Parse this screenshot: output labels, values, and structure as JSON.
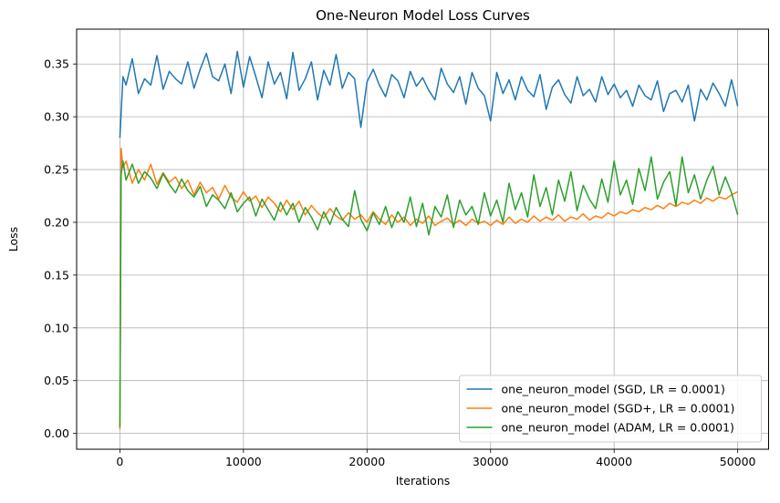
{
  "chart_data": {
    "type": "line",
    "title": "One-Neuron Model Loss Curves",
    "xlabel": "Iterations",
    "ylabel": "Loss",
    "xlim": [
      -3500,
      52500
    ],
    "ylim": [
      -0.015,
      0.383
    ],
    "x_ticks": [
      0,
      10000,
      20000,
      30000,
      40000,
      50000
    ],
    "y_ticks": [
      0.0,
      0.05,
      0.1,
      0.15,
      0.2,
      0.25,
      0.3,
      0.35
    ],
    "x_tick_labels": [
      "0",
      "10000",
      "20000",
      "30000",
      "40000",
      "50000"
    ],
    "y_tick_labels": [
      "0.00",
      "0.05",
      "0.10",
      "0.15",
      "0.20",
      "0.25",
      "0.30",
      "0.35"
    ],
    "grid": true,
    "legend_position": "lower-right",
    "series": [
      {
        "name": "one_neuron_model (SGD, LR = 0.0001)",
        "color": "#1f77b4",
        "x": [
          0,
          250,
          500,
          1000,
          1500,
          2000,
          2500,
          3000,
          3500,
          4000,
          4500,
          5000,
          5500,
          6000,
          6500,
          7000,
          7500,
          8000,
          8500,
          9000,
          9500,
          10000,
          10500,
          11000,
          11500,
          12000,
          12500,
          13000,
          13500,
          14000,
          14500,
          15000,
          15500,
          16000,
          16500,
          17000,
          17500,
          18000,
          18500,
          19000,
          19500,
          20000,
          20500,
          21000,
          21500,
          22000,
          22500,
          23000,
          23500,
          24000,
          24500,
          25000,
          25500,
          26000,
          26500,
          27000,
          27500,
          28000,
          28500,
          29000,
          29500,
          30000,
          30500,
          31000,
          31500,
          32000,
          32500,
          33000,
          33500,
          34000,
          34500,
          35000,
          35500,
          36000,
          36500,
          37000,
          37500,
          38000,
          38500,
          39000,
          39500,
          40000,
          40500,
          41000,
          41500,
          42000,
          42500,
          43000,
          43500,
          44000,
          44500,
          45000,
          45500,
          46000,
          46500,
          47000,
          47500,
          48000,
          48500,
          49000,
          49500,
          50000
        ],
        "values": [
          0.28,
          0.338,
          0.33,
          0.355,
          0.322,
          0.336,
          0.33,
          0.358,
          0.326,
          0.343,
          0.336,
          0.331,
          0.352,
          0.327,
          0.345,
          0.36,
          0.338,
          0.334,
          0.35,
          0.322,
          0.362,
          0.328,
          0.357,
          0.338,
          0.318,
          0.352,
          0.331,
          0.342,
          0.317,
          0.361,
          0.325,
          0.336,
          0.352,
          0.316,
          0.344,
          0.33,
          0.359,
          0.327,
          0.342,
          0.336,
          0.29,
          0.333,
          0.345,
          0.33,
          0.319,
          0.34,
          0.334,
          0.318,
          0.343,
          0.329,
          0.337,
          0.325,
          0.316,
          0.346,
          0.331,
          0.323,
          0.338,
          0.312,
          0.342,
          0.327,
          0.32,
          0.296,
          0.342,
          0.322,
          0.335,
          0.316,
          0.338,
          0.325,
          0.319,
          0.34,
          0.307,
          0.328,
          0.335,
          0.321,
          0.313,
          0.338,
          0.32,
          0.326,
          0.314,
          0.338,
          0.321,
          0.331,
          0.318,
          0.325,
          0.31,
          0.33,
          0.32,
          0.316,
          0.334,
          0.305,
          0.322,
          0.325,
          0.314,
          0.33,
          0.296,
          0.326,
          0.316,
          0.332,
          0.322,
          0.31,
          0.335,
          0.31
        ]
      },
      {
        "name": "one_neuron_model (SGD+, LR = 0.0001)",
        "color": "#ff7f0e",
        "x": [
          0,
          100,
          250,
          500,
          1000,
          1500,
          2000,
          2500,
          3000,
          3500,
          4000,
          4500,
          5000,
          5500,
          6000,
          6500,
          7000,
          7500,
          8000,
          8500,
          9000,
          9500,
          10000,
          10500,
          11000,
          11500,
          12000,
          12500,
          13000,
          13500,
          14000,
          14500,
          15000,
          15500,
          16000,
          16500,
          17000,
          17500,
          18000,
          18500,
          19000,
          19500,
          20000,
          20500,
          21000,
          21500,
          22000,
          22500,
          23000,
          23500,
          24000,
          24500,
          25000,
          25500,
          26000,
          26500,
          27000,
          27500,
          28000,
          28500,
          29000,
          29500,
          30000,
          30500,
          31000,
          31500,
          32000,
          32500,
          33000,
          33500,
          34000,
          34500,
          35000,
          35500,
          36000,
          36500,
          37000,
          37500,
          38000,
          38500,
          39000,
          39500,
          40000,
          40500,
          41000,
          41500,
          42000,
          42500,
          43000,
          43500,
          44000,
          44500,
          45000,
          45500,
          46000,
          46500,
          47000,
          47500,
          48000,
          48500,
          49000,
          49500,
          50000
        ],
        "values": [
          0.004,
          0.27,
          0.252,
          0.258,
          0.237,
          0.25,
          0.24,
          0.255,
          0.236,
          0.247,
          0.238,
          0.243,
          0.232,
          0.24,
          0.226,
          0.238,
          0.228,
          0.233,
          0.222,
          0.235,
          0.224,
          0.219,
          0.229,
          0.22,
          0.225,
          0.214,
          0.224,
          0.218,
          0.21,
          0.221,
          0.212,
          0.22,
          0.207,
          0.216,
          0.209,
          0.204,
          0.213,
          0.206,
          0.202,
          0.209,
          0.203,
          0.207,
          0.2,
          0.21,
          0.203,
          0.198,
          0.207,
          0.2,
          0.205,
          0.197,
          0.203,
          0.199,
          0.206,
          0.197,
          0.201,
          0.204,
          0.198,
          0.202,
          0.197,
          0.203,
          0.199,
          0.201,
          0.197,
          0.202,
          0.198,
          0.205,
          0.199,
          0.203,
          0.2,
          0.206,
          0.201,
          0.205,
          0.202,
          0.207,
          0.201,
          0.205,
          0.203,
          0.208,
          0.202,
          0.206,
          0.204,
          0.209,
          0.206,
          0.21,
          0.208,
          0.212,
          0.21,
          0.214,
          0.212,
          0.216,
          0.213,
          0.218,
          0.215,
          0.219,
          0.217,
          0.221,
          0.218,
          0.223,
          0.22,
          0.224,
          0.222,
          0.226,
          0.229
        ]
      },
      {
        "name": "one_neuron_model (ADAM, LR = 0.0001)",
        "color": "#2ca02c",
        "x": [
          0,
          100,
          250,
          500,
          1000,
          1500,
          2000,
          2500,
          3000,
          3500,
          4000,
          4500,
          5000,
          5500,
          6000,
          6500,
          7000,
          7500,
          8000,
          8500,
          9000,
          9500,
          10000,
          10500,
          11000,
          11500,
          12000,
          12500,
          13000,
          13500,
          14000,
          14500,
          15000,
          15500,
          16000,
          16500,
          17000,
          17500,
          18000,
          18500,
          19000,
          19500,
          20000,
          20500,
          21000,
          21500,
          22000,
          22500,
          23000,
          23500,
          24000,
          24500,
          25000,
          25500,
          26000,
          26500,
          27000,
          27500,
          28000,
          28500,
          29000,
          29500,
          30000,
          30500,
          31000,
          31500,
          32000,
          32500,
          33000,
          33500,
          34000,
          34500,
          35000,
          35500,
          36000,
          36500,
          37000,
          37500,
          38000,
          38500,
          39000,
          39500,
          40000,
          40500,
          41000,
          41500,
          42000,
          42500,
          43000,
          43500,
          44000,
          44500,
          45000,
          45500,
          46000,
          46500,
          47000,
          47500,
          48000,
          48500,
          49000,
          49500,
          50000
        ],
        "values": [
          0.006,
          0.245,
          0.258,
          0.24,
          0.255,
          0.237,
          0.248,
          0.242,
          0.232,
          0.246,
          0.236,
          0.228,
          0.241,
          0.23,
          0.224,
          0.234,
          0.215,
          0.226,
          0.221,
          0.213,
          0.228,
          0.21,
          0.218,
          0.224,
          0.206,
          0.222,
          0.212,
          0.202,
          0.219,
          0.207,
          0.218,
          0.2,
          0.214,
          0.205,
          0.193,
          0.21,
          0.198,
          0.214,
          0.203,
          0.196,
          0.23,
          0.203,
          0.192,
          0.209,
          0.198,
          0.215,
          0.195,
          0.21,
          0.2,
          0.224,
          0.196,
          0.218,
          0.188,
          0.215,
          0.205,
          0.226,
          0.195,
          0.221,
          0.207,
          0.215,
          0.198,
          0.228,
          0.206,
          0.221,
          0.2,
          0.237,
          0.212,
          0.228,
          0.205,
          0.245,
          0.215,
          0.233,
          0.207,
          0.24,
          0.22,
          0.248,
          0.211,
          0.235,
          0.222,
          0.213,
          0.241,
          0.219,
          0.258,
          0.226,
          0.24,
          0.217,
          0.251,
          0.23,
          0.262,
          0.222,
          0.238,
          0.248,
          0.216,
          0.262,
          0.228,
          0.245,
          0.222,
          0.24,
          0.253,
          0.226,
          0.243,
          0.228,
          0.207
        ]
      }
    ]
  }
}
